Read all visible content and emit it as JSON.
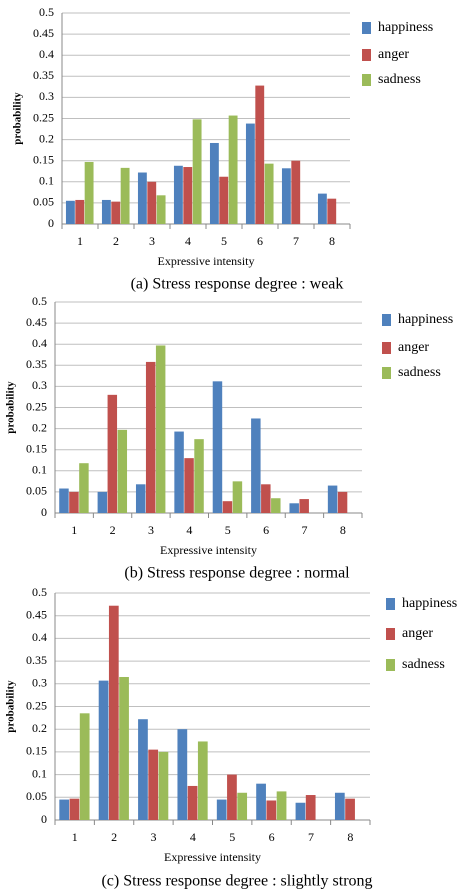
{
  "chart_data": [
    {
      "type": "bar",
      "caption": "(a) Stress response degree : weak",
      "xlabel": "Expressive intensity",
      "ylabel": "probability",
      "categories": [
        "1",
        "2",
        "3",
        "4",
        "5",
        "6",
        "7",
        "8"
      ],
      "series": [
        {
          "name": "happiness",
          "color": "#4f81bd",
          "values": [
            0.055,
            0.057,
            0.122,
            0.138,
            0.192,
            0.238,
            0.132,
            0.072
          ]
        },
        {
          "name": "anger",
          "color": "#c0504d",
          "values": [
            0.057,
            0.053,
            0.1,
            0.135,
            0.112,
            0.328,
            0.15,
            0.06
          ]
        },
        {
          "name": "sadness",
          "color": "#9bbb59",
          "values": [
            0.147,
            0.133,
            0.068,
            0.248,
            0.257,
            0.143,
            0,
            0
          ]
        }
      ],
      "ylim": [
        0,
        0.5
      ],
      "yticks": [
        0,
        0.05,
        0.1,
        0.15,
        0.2,
        0.25,
        0.3,
        0.35,
        0.4,
        0.45,
        0.5
      ],
      "grid": true,
      "legend": "right"
    },
    {
      "type": "bar",
      "caption": "(b) Stress response degree : normal",
      "xlabel": "Expressive intensity",
      "ylabel": "probability",
      "categories": [
        "1",
        "2",
        "3",
        "4",
        "5",
        "6",
        "7",
        "8"
      ],
      "series": [
        {
          "name": "happiness",
          "color": "#4f81bd",
          "values": [
            0.058,
            0.05,
            0.068,
            0.193,
            0.312,
            0.224,
            0.023,
            0.065
          ]
        },
        {
          "name": "anger",
          "color": "#c0504d",
          "values": [
            0.05,
            0.28,
            0.358,
            0.13,
            0.028,
            0.068,
            0.033,
            0.05
          ]
        },
        {
          "name": "sadness",
          "color": "#9bbb59",
          "values": [
            0.118,
            0.197,
            0.397,
            0.175,
            0.075,
            0.035,
            0,
            0
          ]
        }
      ],
      "ylim": [
        0,
        0.5
      ],
      "yticks": [
        0,
        0.05,
        0.1,
        0.15,
        0.2,
        0.25,
        0.3,
        0.35,
        0.4,
        0.45,
        0.5
      ],
      "grid": true,
      "legend": "right"
    },
    {
      "type": "bar",
      "caption": "(c) Stress response degree : slightly strong",
      "xlabel": "Expressive intensity",
      "ylabel": "probability",
      "categories": [
        "1",
        "2",
        "3",
        "4",
        "5",
        "6",
        "7",
        "8"
      ],
      "series": [
        {
          "name": "happiness",
          "color": "#4f81bd",
          "values": [
            0.045,
            0.307,
            0.222,
            0.2,
            0.045,
            0.08,
            0.038,
            0.06
          ]
        },
        {
          "name": "anger",
          "color": "#c0504d",
          "values": [
            0.047,
            0.472,
            0.155,
            0.075,
            0.1,
            0.043,
            0.055,
            0.047
          ]
        },
        {
          "name": "sadness",
          "color": "#9bbb59",
          "values": [
            0.235,
            0.315,
            0.15,
            0.173,
            0.06,
            0.063,
            0,
            0
          ]
        }
      ],
      "ylim": [
        0,
        0.5
      ],
      "yticks": [
        0,
        0.05,
        0.1,
        0.15,
        0.2,
        0.25,
        0.3,
        0.35,
        0.4,
        0.45,
        0.5
      ],
      "grid": true,
      "legend": "right"
    }
  ]
}
